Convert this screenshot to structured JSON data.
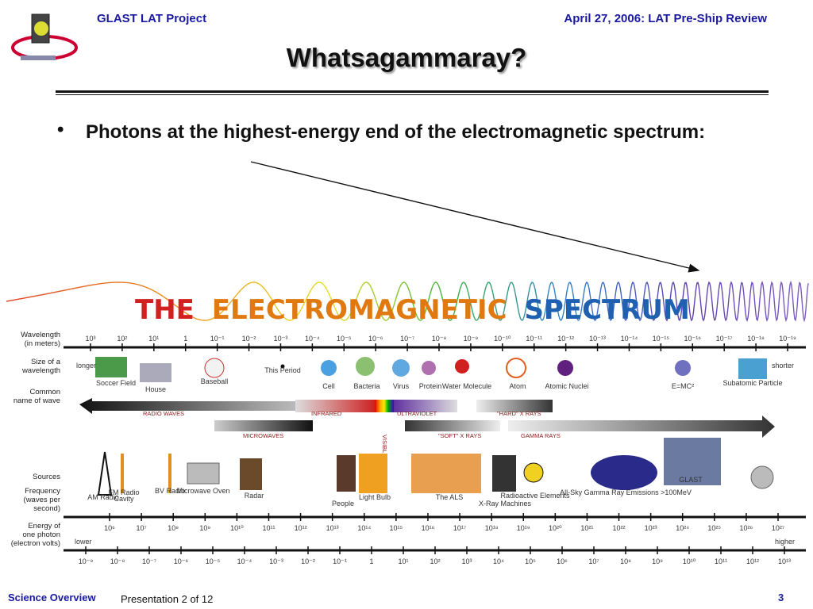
{
  "header": {
    "project": "GLAST LAT Project",
    "review": "April 27, 2006: LAT Pre-Ship Review"
  },
  "slide": {
    "title": "Whatsagammaray?",
    "bullet_symbol": "•",
    "bullet_text": "Photons at the highest-energy end of the electromagnetic spectrum:"
  },
  "figure": {
    "title_words": [
      "THE",
      "ELECTROMAGNETIC",
      "SPECTRUM"
    ],
    "row_labels": {
      "wavelength": [
        "Wavelength",
        "(in meters)"
      ],
      "size": [
        "Size of a",
        "wavelength"
      ],
      "common": [
        "Common",
        "name of wave"
      ],
      "sources": [
        "Sources"
      ],
      "frequency": [
        "Frequency",
        "(waves per",
        "second)"
      ],
      "energy": [
        "Energy of",
        "one photon",
        "(electron volts)"
      ]
    },
    "wavelength_ticks": [
      "10³",
      "10²",
      "10¹",
      "1",
      "10⁻¹",
      "10⁻²",
      "10⁻³",
      "10⁻⁴",
      "10⁻⁵",
      "10⁻⁶",
      "10⁻⁷",
      "10⁻⁸",
      "10⁻⁹",
      "10⁻¹⁰",
      "10⁻¹¹",
      "10⁻¹²",
      "10⁻¹³",
      "10⁻¹⁴",
      "10⁻¹⁵",
      "10⁻¹⁶",
      "10⁻¹⁷",
      "10⁻¹⁸",
      "10⁻¹⁹"
    ],
    "size_objects": [
      "Soccer Field",
      "House",
      "Baseball",
      "This Period",
      "Cell",
      "Bacteria",
      "Virus",
      "Protein",
      "Water Molecule",
      "Atom",
      "Atomic Nuclei",
      "E=MC²",
      "Subatomic Particle"
    ],
    "size_direction": {
      "left": "longer",
      "right": "shorter"
    },
    "wave_bands_upper": [
      "RADIO WAVES",
      "INFRARED",
      "VISIBLE",
      "ULTRAVIOLET",
      "\"HARD\" X RAYS"
    ],
    "wave_bands_lower": [
      "MICROWAVES",
      "\"SOFT\" X RAYS",
      "GAMMA RAYS"
    ],
    "sources": [
      "AM Radio",
      "FM Radio",
      "Cavity",
      "BV Radio",
      "Microwave Oven",
      "Radar",
      "People",
      "Light Bulb",
      "The ALS",
      "X-Ray Machines",
      "Radioactive Elements",
      "All-Sky Gamma Ray Emissions >100MeV",
      "GLAST"
    ],
    "frequency_ticks": [
      "10⁶",
      "10⁷",
      "10⁸",
      "10⁹",
      "10¹⁰",
      "10¹¹",
      "10¹²",
      "10¹³",
      "10¹⁴",
      "10¹⁵",
      "10¹⁶",
      "10¹⁷",
      "10¹⁸",
      "10¹⁹",
      "10²⁰",
      "10²¹",
      "10²²",
      "10²³",
      "10²⁴",
      "10²⁵",
      "10²⁶",
      "10²⁷"
    ],
    "energy_ticks": [
      "10⁻⁹",
      "10⁻⁸",
      "10⁻⁷",
      "10⁻⁶",
      "10⁻⁵",
      "10⁻⁴",
      "10⁻³",
      "10⁻²",
      "10⁻¹",
      "1",
      "10¹",
      "10²",
      "10³",
      "10⁴",
      "10⁵",
      "10⁶",
      "10⁷",
      "10⁸",
      "10⁹",
      "10¹⁰",
      "10¹¹",
      "10¹²",
      "10¹³"
    ],
    "energy_direction": {
      "left": "lower",
      "right": "higher"
    }
  },
  "footer": {
    "section": "Science Overview",
    "presentation": "Presentation 2 of 12",
    "page": "3"
  },
  "colors": {
    "header_blue": "#1a1aa0",
    "title_text": "#111111"
  }
}
